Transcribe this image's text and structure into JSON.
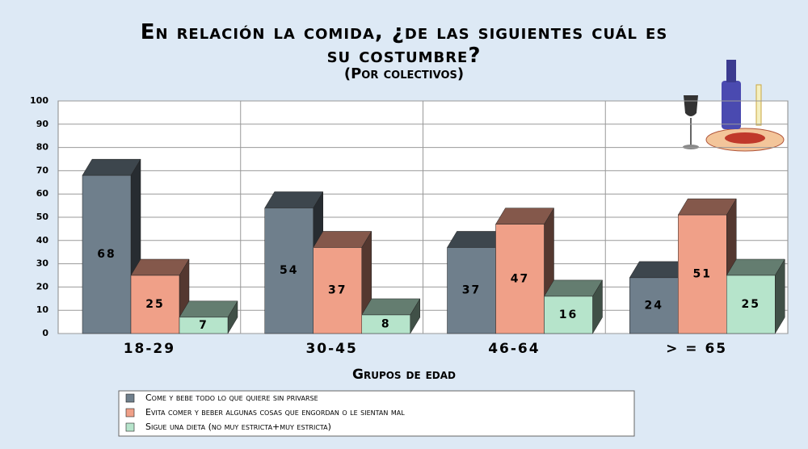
{
  "chart_data": {
    "type": "bar3d",
    "title": "En relación la comida, ¿de las siguientes cuál es su costumbre?",
    "subtitle": "(Por colectivos)",
    "x_label": "Grupos de edad",
    "categories": [
      "18-29",
      "30-45",
      "46-64",
      "> = 65"
    ],
    "series": [
      {
        "name": "Come y bebe todo lo que quiere sin privarse",
        "color": "#6f7f8c",
        "values": [
          68,
          54,
          37,
          24
        ]
      },
      {
        "name": "Evita comer y beber algunas cosas que engordan o le sientan mal",
        "color": "#f0a088",
        "values": [
          25,
          37,
          47,
          51
        ]
      },
      {
        "name": "Sigue una dieta (no muy estricta+muy estricta)",
        "color": "#b6e4cb",
        "values": [
          7,
          8,
          16,
          25
        ]
      }
    ],
    "ylim": [
      0,
      100
    ],
    "yticks": [
      0,
      10,
      20,
      30,
      40,
      50,
      60,
      70,
      80,
      90,
      100
    ],
    "grid": true,
    "legend": "bottom"
  }
}
